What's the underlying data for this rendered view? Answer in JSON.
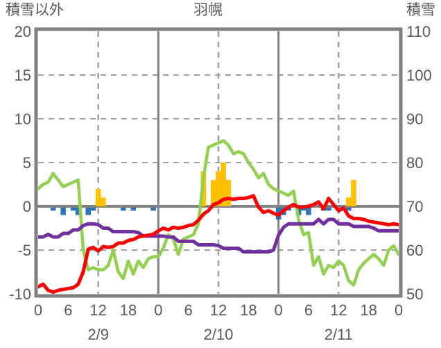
{
  "header": {
    "left_axis_title": "積雪以外",
    "chart_title": "羽幌",
    "right_axis_title": "積雪"
  },
  "colors": {
    "red_line": "#ff0000",
    "green_line": "#92d050",
    "purple_line": "#7030a0",
    "orange_bars": "#ffc000",
    "blue_bars": "#2e75b6",
    "border": "#808080",
    "grid_dashed": "#a0a0a0",
    "zero_line": "#808080",
    "label_text": "#595959"
  },
  "chart_data": {
    "type": "line+bar combo, dual y-axis",
    "title": "羽幌",
    "x_axis": {
      "unit": "hour",
      "start": 0,
      "end": 72,
      "tick_interval": 6,
      "tick_labels": [
        "0",
        "6",
        "12",
        "18",
        "0",
        "6",
        "12",
        "18",
        "0",
        "6",
        "12",
        "18",
        "0"
      ],
      "day_labels": [
        {
          "text": "2/9",
          "hour": 12
        },
        {
          "text": "2/10",
          "hour": 36
        },
        {
          "text": "2/11",
          "hour": 60
        }
      ],
      "dashed_gridline_hours": [
        12,
        36,
        60
      ],
      "solid_gridline_hours": [
        24,
        48
      ],
      "grid": true
    },
    "left_axis": {
      "label": "積雪以外",
      "min": -10,
      "max": 20,
      "tick_values": [
        20,
        15,
        10,
        5,
        0,
        -5,
        -10
      ],
      "tick_labels": [
        "20",
        "15",
        "10",
        "5",
        "0",
        "-5",
        "-10"
      ],
      "dashed_gridline_values": [
        15,
        10,
        5,
        -5
      ],
      "zero_line_value": 0
    },
    "right_axis": {
      "label": "積雪",
      "min": 50,
      "max": 110,
      "tick_values": [
        110,
        100,
        90,
        80,
        70,
        60,
        50
      ],
      "tick_labels": [
        "110",
        "100",
        "90",
        "80",
        "70",
        "60",
        "50"
      ]
    },
    "legend": "none shown",
    "series": [
      {
        "id": "green-line",
        "color_key": "green_line",
        "axis": "right",
        "type": "line",
        "x_start": 0,
        "x_step": 1,
        "values": [
          74,
          75,
          75.5,
          77.5,
          76,
          74.5,
          75,
          75.5,
          76,
          60,
          55.5,
          56,
          55.5,
          55.5,
          56.5,
          60,
          55,
          53.5,
          57.5,
          54.5,
          57.5,
          56,
          58,
          58.5,
          58.5,
          60.5,
          63.5,
          62.5,
          59,
          62.5,
          63,
          63.5,
          66,
          76.5,
          83.5,
          84,
          84.5,
          85,
          84,
          82,
          82.5,
          82,
          80,
          78.5,
          76.5,
          77.5,
          75,
          74,
          73.5,
          73,
          72.5,
          73.5,
          67,
          63.5,
          64,
          56.5,
          58.5,
          54.5,
          56.5,
          56,
          57.5,
          56.5,
          53,
          52,
          55.5,
          57,
          58,
          59,
          58,
          56.5,
          60,
          61,
          59
        ]
      },
      {
        "id": "purple-line",
        "color_key": "purple_line",
        "axis": "left",
        "type": "line",
        "x_start": 0,
        "x_step": 1,
        "values": [
          -3.5,
          -3.5,
          -3.2,
          -3.5,
          -3.5,
          -3.1,
          -3.1,
          -2.7,
          -2.7,
          -2.2,
          -2.0,
          -2.0,
          -2.1,
          -2.5,
          -2.5,
          -2.9,
          -2.9,
          -2.9,
          -2.9,
          -2.9,
          -3.0,
          -3.4,
          -3.4,
          -3.4,
          -3.4,
          -3.4,
          -3.5,
          -3.5,
          -4.0,
          -4.0,
          -4.0,
          -4.0,
          -4.4,
          -4.4,
          -4.4,
          -4.4,
          -4.5,
          -4.8,
          -4.8,
          -4.8,
          -4.8,
          -5.2,
          -5.2,
          -5.2,
          -5.2,
          -5.2,
          -5.2,
          -5.0,
          -3.3,
          -2.4,
          -2.0,
          -2.0,
          -2.0,
          -2.0,
          -2.0,
          -2.0,
          -1.5,
          -2.0,
          -1.5,
          -1.5,
          -2.0,
          -2.0,
          -2.0,
          -2.3,
          -2.3,
          -2.3,
          -2.3,
          -2.5,
          -2.8,
          -2.8,
          -2.8,
          -2.8,
          -2.8
        ]
      },
      {
        "id": "red-line",
        "color_key": "red_line",
        "axis": "left",
        "type": "line",
        "x_start": 0,
        "x_step": 1,
        "values": [
          -9.2,
          -8.9,
          -9.6,
          -9.8,
          -9.6,
          -9.5,
          -9.4,
          -9.3,
          -8.9,
          -7.5,
          -4.9,
          -4.7,
          -5.1,
          -4.6,
          -4.7,
          -4.6,
          -4.2,
          -4.2,
          -3.9,
          -3.8,
          -3.5,
          -3.4,
          -3.3,
          -3.2,
          -2.8,
          -2.5,
          -2.7,
          -2.4,
          -2.5,
          -2.4,
          -2.2,
          -2.1,
          -1.6,
          -0.9,
          -0.5,
          0.2,
          0.4,
          0.8,
          0.9,
          0.8,
          0.9,
          0.9,
          1.0,
          1.2,
          -0.1,
          -0.7,
          -0.5,
          -0.8,
          -1.0,
          -0.5,
          -0.1,
          0.2,
          -0.1,
          -0.1,
          0.0,
          0.2,
          0.5,
          -0.3,
          0.9,
          0.2,
          -0.5,
          -0.2,
          -1.1,
          -1.4,
          -1.4,
          -1.5,
          -1.7,
          -1.8,
          -1.9,
          -2.0,
          -2.1,
          -2.0,
          -2.1
        ]
      },
      {
        "id": "orange-bars",
        "color_key": "orange_bars",
        "axis": "left",
        "type": "bar",
        "points": [
          {
            "hour": 12,
            "value": 2
          },
          {
            "hour": 13,
            "value": 1
          },
          {
            "hour": 33,
            "value": 4
          },
          {
            "hour": 35,
            "value": 3
          },
          {
            "hour": 36,
            "value": 4
          },
          {
            "hour": 37,
            "value": 5
          },
          {
            "hour": 38,
            "value": 3
          },
          {
            "hour": 62,
            "value": 1
          },
          {
            "hour": 63,
            "value": 3
          }
        ]
      },
      {
        "id": "blue-bars",
        "color_key": "blue_bars",
        "axis": "left",
        "type": "bar",
        "points": [
          {
            "hour": 3,
            "value": -0.5
          },
          {
            "hour": 5,
            "value": -1
          },
          {
            "hour": 7,
            "value": -0.5
          },
          {
            "hour": 8,
            "value": -1
          },
          {
            "hour": 10,
            "value": -1
          },
          {
            "hour": 11,
            "value": -0.5
          },
          {
            "hour": 17,
            "value": -0.5
          },
          {
            "hour": 19,
            "value": -0.5
          },
          {
            "hour": 23,
            "value": -0.5
          },
          {
            "hour": 48,
            "value": -1.5
          },
          {
            "hour": 49,
            "value": -1
          },
          {
            "hour": 50,
            "value": -0.5
          },
          {
            "hour": 52,
            "value": -1
          },
          {
            "hour": 53,
            "value": -0.5
          },
          {
            "hour": 54,
            "value": -1
          },
          {
            "hour": 57,
            "value": -0.5
          },
          {
            "hour": 58,
            "value": -0.5
          },
          {
            "hour": 62,
            "value": -0.5
          }
        ]
      }
    ]
  }
}
